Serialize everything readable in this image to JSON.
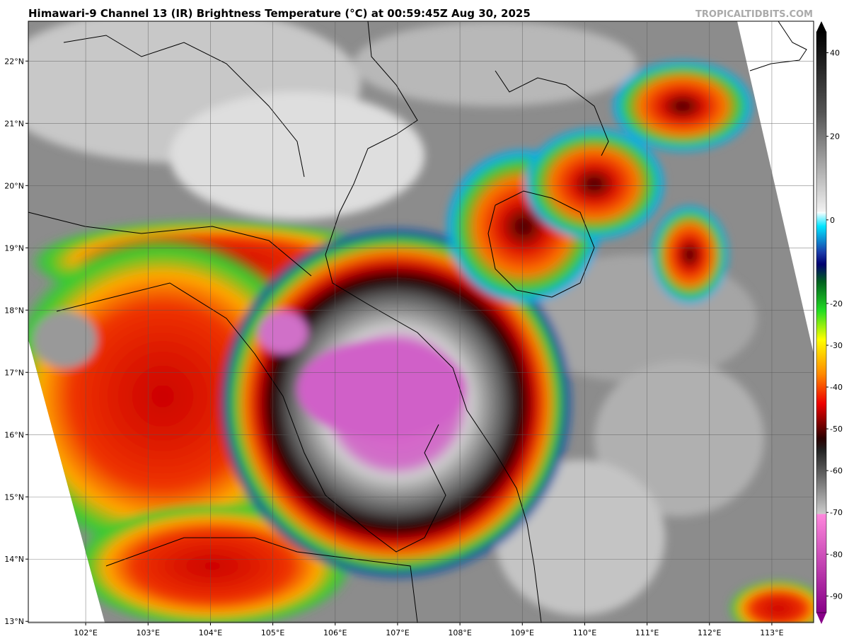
{
  "chart_data": {
    "type": "satellite-map",
    "title": "Himawari-9 Channel 13 (IR) Brightness Temperature (°C) at 00:59:45Z Aug 30, 2025",
    "watermark": "TROPICALTIDBITS.COM",
    "xlim": [
      101.08,
      113.67
    ],
    "ylim": [
      12.98,
      22.64
    ],
    "xticks": [
      {
        "value": 102,
        "label": "102°E"
      },
      {
        "value": 103,
        "label": "103°E"
      },
      {
        "value": 104,
        "label": "104°E"
      },
      {
        "value": 105,
        "label": "105°E"
      },
      {
        "value": 106,
        "label": "106°E"
      },
      {
        "value": 107,
        "label": "107°E"
      },
      {
        "value": 108,
        "label": "108°E"
      },
      {
        "value": 109,
        "label": "109°E"
      },
      {
        "value": 110,
        "label": "110°E"
      },
      {
        "value": 111,
        "label": "111°E"
      },
      {
        "value": 112,
        "label": "112°E"
      },
      {
        "value": 113,
        "label": "113°E"
      }
    ],
    "yticks": [
      {
        "value": 13,
        "label": "13°N"
      },
      {
        "value": 14,
        "label": "14°N"
      },
      {
        "value": 15,
        "label": "15°N"
      },
      {
        "value": 16,
        "label": "16°N"
      },
      {
        "value": 17,
        "label": "17°N"
      },
      {
        "value": 18,
        "label": "18°N"
      },
      {
        "value": 19,
        "label": "19°N"
      },
      {
        "value": 20,
        "label": "20°N"
      },
      {
        "value": 21,
        "label": "21°N"
      },
      {
        "value": 22,
        "label": "22°N"
      }
    ],
    "grid": true,
    "colorbar": {
      "lim": [
        -94,
        45
      ],
      "ticks": [
        40,
        20,
        0,
        -20,
        -30,
        -40,
        -50,
        -60,
        -70,
        -80,
        -90
      ]
    }
  }
}
